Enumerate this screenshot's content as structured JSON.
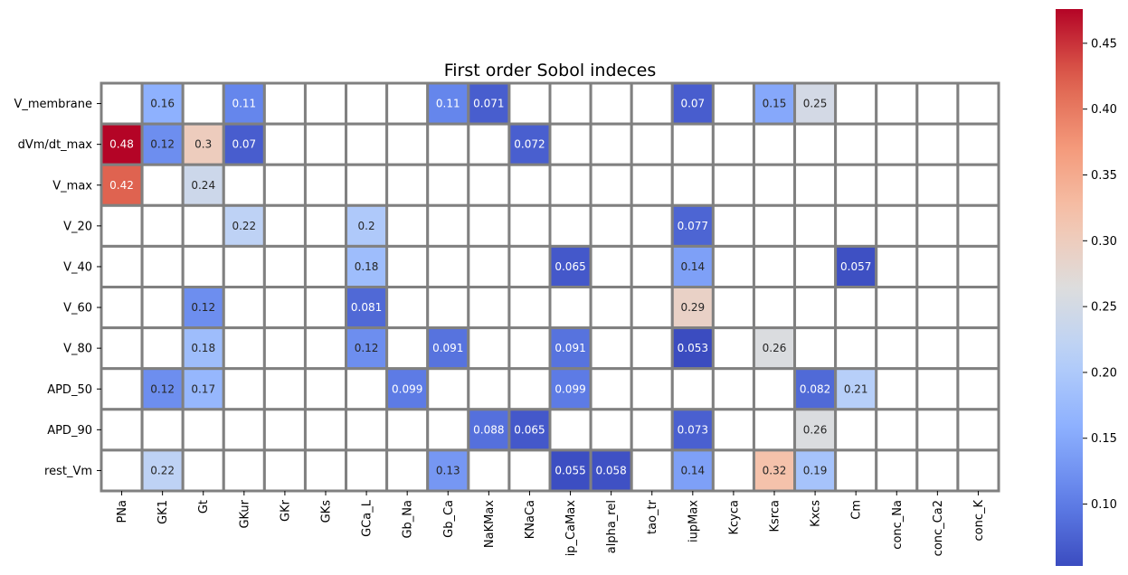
{
  "chart_data": {
    "type": "heatmap",
    "title": "First order Sobol indeces",
    "rows": [
      "V_membrane",
      "dVm/dt_max",
      "V_max",
      "V_20",
      "V_40",
      "V_60",
      "V_80",
      "APD_50",
      "APD_90",
      "rest_Vm"
    ],
    "columns": [
      "PNa",
      "GK1",
      "Gt",
      "GKur",
      "GKr",
      "GKs",
      "GCa_L",
      "Gb_Na",
      "Gb_Ca",
      "NaKMax",
      "KNaCa",
      "ip_CaMax",
      "alpha_rel",
      "tao_tr",
      "iupMax",
      "Kcyca",
      "Ksrca",
      "Kxcs",
      "Cm",
      "conc_Na",
      "conc_Ca2",
      "conc_K"
    ],
    "cells": [
      {
        "row": "V_membrane",
        "col": "GK1",
        "value": 0.16,
        "label": "0.16"
      },
      {
        "row": "V_membrane",
        "col": "GKur",
        "value": 0.11,
        "label": "0.11"
      },
      {
        "row": "V_membrane",
        "col": "Gb_Ca",
        "value": 0.11,
        "label": "0.11"
      },
      {
        "row": "V_membrane",
        "col": "NaKMax",
        "value": 0.071,
        "label": "0.071"
      },
      {
        "row": "V_membrane",
        "col": "iupMax",
        "value": 0.07,
        "label": "0.07"
      },
      {
        "row": "V_membrane",
        "col": "Ksrca",
        "value": 0.15,
        "label": "0.15"
      },
      {
        "row": "V_membrane",
        "col": "Kxcs",
        "value": 0.25,
        "label": "0.25"
      },
      {
        "row": "dVm/dt_max",
        "col": "PNa",
        "value": 0.476,
        "label": "0.48"
      },
      {
        "row": "dVm/dt_max",
        "col": "GK1",
        "value": 0.12,
        "label": "0.12"
      },
      {
        "row": "dVm/dt_max",
        "col": "Gt",
        "value": 0.3,
        "label": "0.3"
      },
      {
        "row": "dVm/dt_max",
        "col": "GKur",
        "value": 0.07,
        "label": "0.07"
      },
      {
        "row": "dVm/dt_max",
        "col": "KNaCa",
        "value": 0.072,
        "label": "0.072"
      },
      {
        "row": "V_max",
        "col": "PNa",
        "value": 0.42,
        "label": "0.42"
      },
      {
        "row": "V_max",
        "col": "Gt",
        "value": 0.24,
        "label": "0.24"
      },
      {
        "row": "V_20",
        "col": "GKur",
        "value": 0.22,
        "label": "0.22"
      },
      {
        "row": "V_20",
        "col": "GCa_L",
        "value": 0.2,
        "label": "0.2"
      },
      {
        "row": "V_20",
        "col": "iupMax",
        "value": 0.077,
        "label": "0.077"
      },
      {
        "row": "V_40",
        "col": "GCa_L",
        "value": 0.18,
        "label": "0.18"
      },
      {
        "row": "V_40",
        "col": "ip_CaMax",
        "value": 0.065,
        "label": "0.065"
      },
      {
        "row": "V_40",
        "col": "iupMax",
        "value": 0.14,
        "label": "0.14"
      },
      {
        "row": "V_40",
        "col": "Cm",
        "value": 0.057,
        "label": "0.057"
      },
      {
        "row": "V_60",
        "col": "Gt",
        "value": 0.12,
        "label": "0.12"
      },
      {
        "row": "V_60",
        "col": "GCa_L",
        "value": 0.081,
        "label": "0.081"
      },
      {
        "row": "V_60",
        "col": "iupMax",
        "value": 0.29,
        "label": "0.29"
      },
      {
        "row": "V_80",
        "col": "Gt",
        "value": 0.18,
        "label": "0.18"
      },
      {
        "row": "V_80",
        "col": "GCa_L",
        "value": 0.12,
        "label": "0.12"
      },
      {
        "row": "V_80",
        "col": "Gb_Ca",
        "value": 0.091,
        "label": "0.091"
      },
      {
        "row": "V_80",
        "col": "ip_CaMax",
        "value": 0.091,
        "label": "0.091"
      },
      {
        "row": "V_80",
        "col": "iupMax",
        "value": 0.053,
        "label": "0.053"
      },
      {
        "row": "V_80",
        "col": "Ksrca",
        "value": 0.26,
        "label": "0.26"
      },
      {
        "row": "APD_50",
        "col": "GK1",
        "value": 0.12,
        "label": "0.12"
      },
      {
        "row": "APD_50",
        "col": "Gt",
        "value": 0.17,
        "label": "0.17"
      },
      {
        "row": "APD_50",
        "col": "Gb_Na",
        "value": 0.099,
        "label": "0.099"
      },
      {
        "row": "APD_50",
        "col": "ip_CaMax",
        "value": 0.099,
        "label": "0.099"
      },
      {
        "row": "APD_50",
        "col": "Kxcs",
        "value": 0.082,
        "label": "0.082"
      },
      {
        "row": "APD_50",
        "col": "Cm",
        "value": 0.21,
        "label": "0.21"
      },
      {
        "row": "APD_90",
        "col": "NaKMax",
        "value": 0.088,
        "label": "0.088"
      },
      {
        "row": "APD_90",
        "col": "KNaCa",
        "value": 0.065,
        "label": "0.065"
      },
      {
        "row": "APD_90",
        "col": "iupMax",
        "value": 0.073,
        "label": "0.073"
      },
      {
        "row": "APD_90",
        "col": "Kxcs",
        "value": 0.26,
        "label": "0.26"
      },
      {
        "row": "rest_Vm",
        "col": "GK1",
        "value": 0.22,
        "label": "0.22"
      },
      {
        "row": "rest_Vm",
        "col": "Gb_Ca",
        "value": 0.13,
        "label": "0.13"
      },
      {
        "row": "rest_Vm",
        "col": "ip_CaMax",
        "value": 0.055,
        "label": "0.055"
      },
      {
        "row": "rest_Vm",
        "col": "alpha_rel",
        "value": 0.058,
        "label": "0.058"
      },
      {
        "row": "rest_Vm",
        "col": "iupMax",
        "value": 0.14,
        "label": "0.14"
      },
      {
        "row": "rest_Vm",
        "col": "Ksrca",
        "value": 0.32,
        "label": "0.32"
      },
      {
        "row": "rest_Vm",
        "col": "Kxcs",
        "value": 0.19,
        "label": "0.19"
      }
    ],
    "colorbar": {
      "colormap": "coolwarm",
      "vmin": 0.053,
      "vmax": 0.476,
      "ticks": [
        0.1,
        0.15,
        0.2,
        0.25,
        0.3,
        0.35,
        0.4,
        0.45
      ],
      "tick_labels": [
        "0.10",
        "0.15",
        "0.20",
        "0.25",
        "0.30",
        "0.35",
        "0.40",
        "0.45"
      ]
    },
    "grid": true,
    "grid_color": "#808080",
    "empty_cell_color": "#ffffff"
  }
}
